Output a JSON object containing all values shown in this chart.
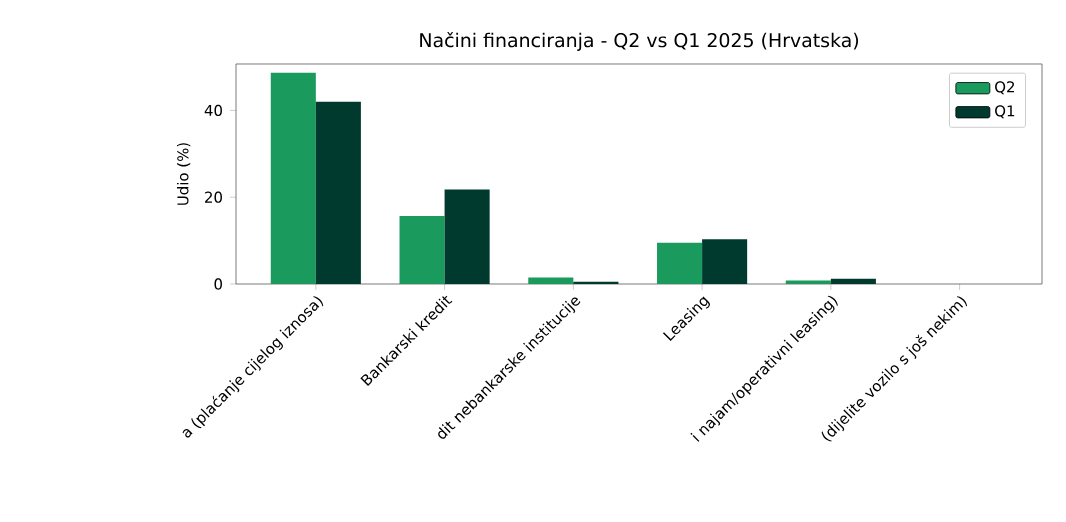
{
  "chart_data": {
    "type": "bar",
    "title": "Načini financiranja - Q2 vs Q1 2025 (Hrvatska)",
    "ylabel": "Udio (%)",
    "categories": [
      "a (plaćanje cijelog iznosa)",
      "Bankarski kredit",
      "dit nebankarske institucije",
      "Leasing",
      "i najam/operativni leasing)",
      "(dijelite vozilo s još nekim)"
    ],
    "series": [
      {
        "name": "Q2",
        "color": "#1a9a5c",
        "values": [
          48.7,
          15.7,
          1.5,
          9.5,
          0.8,
          0
        ]
      },
      {
        "name": "Q1",
        "color": "#003a2f",
        "values": [
          42.0,
          21.8,
          0.5,
          10.3,
          1.2,
          0
        ]
      }
    ],
    "ylim": [
      0,
      50.7
    ],
    "yticks": [
      0,
      20,
      40
    ],
    "legend": "top right",
    "grid": false
  }
}
